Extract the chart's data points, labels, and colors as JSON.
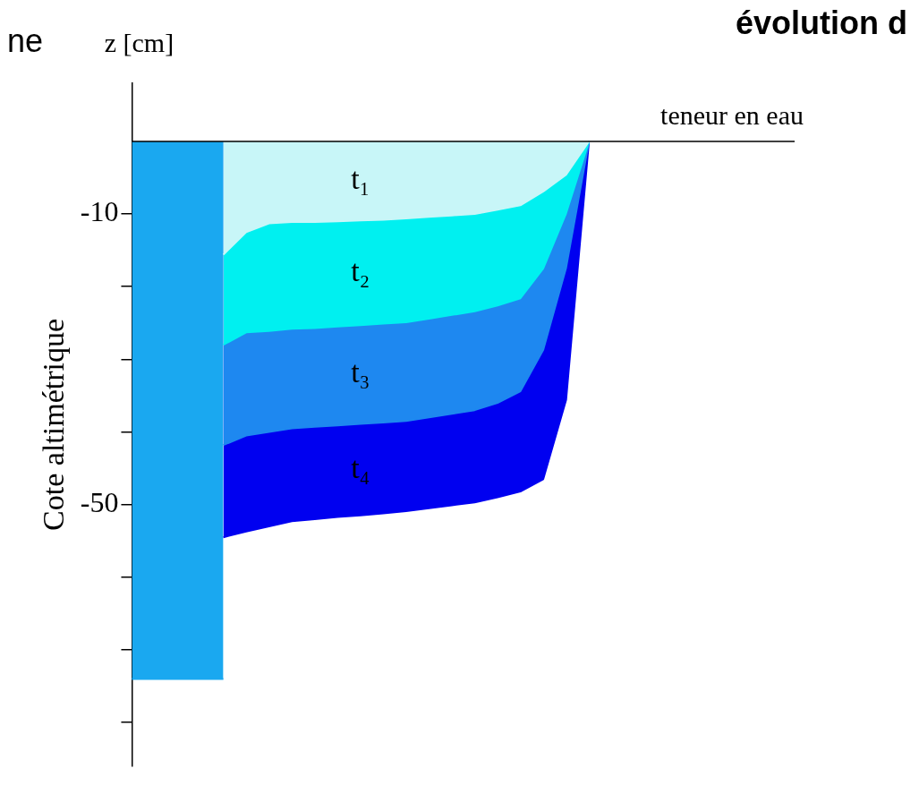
{
  "chart_data": {
    "type": "area",
    "ylabel": "Cote altimétrique",
    "xlabel": "teneur en eau",
    "annotations": [
      "z [cm]",
      "ne",
      "évolution d"
    ],
    "ylim": [
      -86,
      8
    ],
    "categories": [
      null,
      null,
      null,
      null,
      null,
      null,
      null,
      null,
      null,
      null,
      null,
      null,
      null,
      null,
      null,
      null,
      null,
      null,
      null,
      null,
      null,
      null,
      null,
      null,
      null,
      null,
      null,
      null,
      null,
      null
    ],
    "yticks": [
      -10,
      {
        "value": -20,
        "label": null
      },
      {
        "value": -30,
        "label": null
      },
      {
        "value": -40,
        "label": null
      },
      -50,
      {
        "value": -60,
        "label": null
      },
      {
        "value": -70,
        "label": null
      },
      {
        "value": -80,
        "label": null
      }
    ],
    "legend": false,
    "grid": false,
    "series": [
      {
        "name": "t₁",
        "color": "#c8f6f8",
        "values": [
          null,
          null,
          null,
          null,
          -15.6,
          -12.5,
          -11.3,
          -11.1,
          -11.1,
          -11,
          -10.9,
          -10.8,
          -10.6,
          -10.4,
          -10.2,
          -10,
          -9.4,
          -8.8,
          -6.9,
          -4.6,
          0,
          null,
          null,
          null,
          null,
          null,
          null,
          null,
          null,
          null
        ]
      },
      {
        "name": "t₂",
        "color": "#00f0f0",
        "values": [
          null,
          null,
          null,
          null,
          -28,
          -26.3,
          -26.1,
          -25.8,
          -25.7,
          -25.5,
          -25.3,
          -25.1,
          -24.9,
          -24.4,
          -23.9,
          -23.4,
          -22.6,
          -21.6,
          -17.5,
          -9.9,
          0,
          null,
          null,
          null,
          null,
          null,
          null,
          null,
          null,
          null
        ]
      },
      {
        "name": "t₃",
        "color": "#1e88f0",
        "values": [
          null,
          null,
          null,
          null,
          -41.8,
          -40.5,
          -40,
          -39.5,
          -39.3,
          -39.1,
          -38.9,
          -38.7,
          -38.5,
          -38,
          -37.5,
          -37,
          -36,
          -34.4,
          -28.7,
          -17.4,
          0,
          null,
          null,
          null,
          null,
          null,
          null,
          null,
          null,
          null
        ]
      },
      {
        "name": "t₄",
        "color": "#0000f0",
        "values": [
          null,
          null,
          null,
          null,
          -54.5,
          -53.7,
          -53,
          -52.3,
          -52,
          -51.7,
          -51.5,
          -51.2,
          -50.9,
          -50.5,
          -50.1,
          -49.7,
          -49,
          -48.2,
          -46.5,
          -35.6,
          0,
          null,
          null,
          null,
          null,
          null,
          null,
          null,
          null,
          null
        ]
      },
      {
        "color": "#1aa8f0",
        "values": [
          -74,
          -74,
          -74,
          -74,
          -74,
          null,
          null,
          null,
          null,
          null,
          null,
          null,
          null,
          null,
          null,
          null,
          null,
          null,
          null,
          null,
          null,
          null,
          null,
          null,
          null,
          null,
          null,
          null,
          null,
          null
        ]
      }
    ]
  }
}
